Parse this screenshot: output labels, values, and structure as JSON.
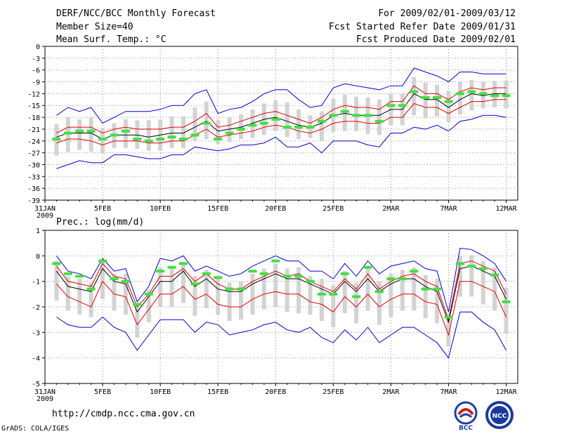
{
  "header": {
    "title": "DERF/NCC/BCC Monthly Forecast",
    "member_size": "Member Size=40",
    "variable": "Mean Surf. Temp.: °C",
    "period": "For 2009/02/01-2009/03/12",
    "refer_date": "Fcst Started Refer Date 2009/01/31",
    "produced_date": "Fcst Produced Date 2009/02/01"
  },
  "footer": {
    "url": "http://cmdp.ncc.cma.gov.cn",
    "credit": "GrADS: COLA/IGES",
    "logo_left": "BCC",
    "logo_right": "NCC"
  },
  "colors": {
    "mean": "#000000",
    "spread": "#e00000",
    "extreme": "#0000cc",
    "box": "#d3d3d3",
    "obs": "#40e040",
    "grid": "#888888"
  },
  "chart_data": [
    {
      "type": "line",
      "title": "Mean Surf. Temp.: °C",
      "ylim": [
        -39,
        0
      ],
      "yticks": [
        0,
        -3,
        -6,
        -9,
        -12,
        -15,
        -18,
        -21,
        -24,
        -27,
        -30,
        -33,
        -36,
        -39
      ],
      "x_ticks": [
        {
          "day": 0,
          "label": "31JAN",
          "sub": "2009"
        },
        {
          "day": 5,
          "label": "5FEB"
        },
        {
          "day": 10,
          "label": "10FEB"
        },
        {
          "day": 15,
          "label": "15FEB"
        },
        {
          "day": 20,
          "label": "20FEB"
        },
        {
          "day": 25,
          "label": "25FEB"
        },
        {
          "day": 30,
          "label": "2MAR"
        },
        {
          "day": 35,
          "label": "7MAR"
        },
        {
          "day": 40,
          "label": "12MAR"
        }
      ],
      "days": [
        1,
        2,
        3,
        4,
        5,
        6,
        7,
        8,
        9,
        10,
        11,
        12,
        13,
        14,
        15,
        16,
        17,
        18,
        19,
        20,
        21,
        22,
        23,
        24,
        25,
        26,
        27,
        28,
        29,
        30,
        31,
        32,
        33,
        34,
        35,
        36,
        37,
        38,
        39,
        40
      ],
      "series": [
        {
          "name": "ensemble_max",
          "role": "extreme",
          "values": [
            -17.5,
            -15.5,
            -16.5,
            -15.5,
            -19.5,
            -18,
            -16.5,
            -16.5,
            -16.5,
            -16,
            -15,
            -15,
            -12,
            -11,
            -17,
            -16,
            -15.5,
            -14,
            -12,
            -11,
            -11,
            -13.5,
            -15.5,
            -15,
            -10.5,
            -9.5,
            -10,
            -10.5,
            -11,
            -10,
            -10,
            -5.5,
            -6.5,
            -7.5,
            -9,
            -6.5,
            -6.5,
            -7,
            -7,
            -7
          ]
        },
        {
          "name": "upper_spread",
          "role": "spread",
          "values": [
            -22,
            -20.5,
            -20.5,
            -20.5,
            -22,
            -21,
            -20.5,
            -21,
            -21,
            -21,
            -20.5,
            -20.5,
            -19,
            -17,
            -20.5,
            -20,
            -19,
            -18,
            -17,
            -16.5,
            -17.5,
            -18.5,
            -19.5,
            -18,
            -16,
            -15,
            -15.5,
            -15.5,
            -16,
            -14,
            -14,
            -10,
            -12,
            -12,
            -13.5,
            -11.5,
            -10.5,
            -11,
            -10.5,
            -10.5
          ]
        },
        {
          "name": "ensemble_mean",
          "role": "mean",
          "values": [
            -23,
            -22,
            -22,
            -22,
            -23.5,
            -22.5,
            -22.5,
            -22.5,
            -23,
            -22.5,
            -22,
            -22,
            -20.5,
            -19,
            -21.5,
            -21,
            -20.5,
            -19.5,
            -18.5,
            -18,
            -19,
            -20,
            -20.5,
            -19.5,
            -17.5,
            -17,
            -17.5,
            -17.5,
            -17.5,
            -16,
            -16,
            -12,
            -13.5,
            -13.5,
            -15.5,
            -13.5,
            -12,
            -12.5,
            -12,
            -12
          ]
        },
        {
          "name": "lower_spread",
          "role": "spread",
          "values": [
            -24.5,
            -23.5,
            -23.5,
            -24,
            -25,
            -24,
            -24,
            -24,
            -24.5,
            -24.5,
            -24,
            -24,
            -22.5,
            -21,
            -23,
            -22.5,
            -22,
            -21.5,
            -20.5,
            -20,
            -20.5,
            -21.5,
            -22,
            -21,
            -19.5,
            -19,
            -19,
            -19.5,
            -19.5,
            -18,
            -18,
            -14.5,
            -15.5,
            -15.5,
            -17,
            -15.5,
            -14,
            -14,
            -13.5,
            -13.5
          ]
        },
        {
          "name": "ensemble_min",
          "role": "extreme",
          "values": [
            -31,
            -30,
            -29,
            -29.5,
            -29.5,
            -27.5,
            -27.5,
            -28,
            -28.5,
            -28.5,
            -27.5,
            -27.5,
            -25.5,
            -26,
            -26.5,
            -26,
            -25,
            -25,
            -24.5,
            -23,
            -25.5,
            -25.5,
            -24.5,
            -27,
            -24,
            -24,
            -24,
            -25,
            -25.5,
            -22,
            -22,
            -20.5,
            -21,
            -20,
            -21.5,
            -19,
            -18.5,
            -17.5,
            -17.5,
            -18
          ]
        },
        {
          "name": "observed",
          "role": "obs",
          "values": [
            -23.5,
            -22,
            -21.5,
            -21.5,
            -23.5,
            -22.5,
            -21.5,
            -23.5,
            -24,
            -23.5,
            -23,
            -23.5,
            -22.5,
            -19.5,
            -23.5,
            -22,
            -21,
            -20,
            -19.5,
            -18.5,
            -20.5,
            -20.5,
            -20.5,
            -19,
            -17.5,
            -16.5,
            -17.5,
            -17.5,
            -19,
            -15,
            -15,
            -11.5,
            -13,
            -13,
            -14,
            -12,
            -11.5,
            -12,
            -12.5,
            -12.5
          ]
        }
      ]
    },
    {
      "type": "line",
      "title": "Prec.: log(mm/d)",
      "ylim": [
        -5,
        1
      ],
      "yticks": [
        1,
        0,
        -1,
        -2,
        -3,
        -4,
        -5
      ],
      "x_ticks": [
        {
          "day": 0,
          "label": "31JAN",
          "sub": "2009"
        },
        {
          "day": 5,
          "label": "5FEB"
        },
        {
          "day": 10,
          "label": "10FEB"
        },
        {
          "day": 15,
          "label": "15FEB"
        },
        {
          "day": 20,
          "label": "20FEB"
        },
        {
          "day": 25,
          "label": "25FEB"
        },
        {
          "day": 30,
          "label": "2MAR"
        },
        {
          "day": 35,
          "label": "7MAR"
        },
        {
          "day": 40,
          "label": "12MAR"
        }
      ],
      "days": [
        1,
        2,
        3,
        4,
        5,
        6,
        7,
        8,
        9,
        10,
        11,
        12,
        13,
        14,
        15,
        16,
        17,
        18,
        19,
        20,
        21,
        22,
        23,
        24,
        25,
        26,
        27,
        28,
        29,
        30,
        31,
        32,
        33,
        34,
        35,
        36,
        37,
        38,
        39,
        40
      ],
      "series": [
        {
          "name": "ensemble_max",
          "role": "extreme",
          "values": [
            0,
            -0.6,
            -0.7,
            -0.9,
            -0.1,
            -0.6,
            -0.5,
            -1.8,
            -1.2,
            -0.1,
            -0.2,
            0,
            -0.6,
            -0.4,
            -0.6,
            -0.8,
            -0.7,
            -0.4,
            -0.2,
            0,
            -0.2,
            -0.2,
            -0.6,
            -0.6,
            -0.9,
            -0.3,
            -0.8,
            -0.2,
            -0.7,
            -0.4,
            -0.3,
            -0.2,
            -0.5,
            -0.6,
            -2.2,
            0.3,
            0.25,
            0,
            -0.3,
            -1
          ]
        },
        {
          "name": "upper_spread",
          "role": "spread",
          "values": [
            -0.4,
            -1,
            -1.1,
            -1.2,
            -0.3,
            -0.8,
            -0.9,
            -2,
            -1.5,
            -0.8,
            -0.8,
            -0.5,
            -1,
            -0.7,
            -1.1,
            -1.3,
            -1.3,
            -1,
            -0.8,
            -0.6,
            -0.8,
            -0.7,
            -1,
            -1.2,
            -1.4,
            -0.9,
            -1.3,
            -0.7,
            -1.3,
            -1,
            -0.8,
            -0.7,
            -1,
            -1.2,
            -2.5,
            -0.3,
            -0.2,
            -0.4,
            -0.6,
            -1.5
          ]
        },
        {
          "name": "ensemble_mean",
          "role": "mean",
          "values": [
            -0.6,
            -1.2,
            -1.3,
            -1.4,
            -0.5,
            -1,
            -1.1,
            -2.2,
            -1.6,
            -1,
            -1,
            -0.6,
            -1.2,
            -0.9,
            -1.3,
            -1.4,
            -1.4,
            -1.1,
            -0.9,
            -0.7,
            -0.9,
            -0.9,
            -1.1,
            -1.3,
            -1.5,
            -1,
            -1.4,
            -0.9,
            -1.4,
            -1.1,
            -0.9,
            -0.9,
            -1.2,
            -1.4,
            -2.6,
            -0.5,
            -0.4,
            -0.6,
            -0.8,
            -1.7
          ]
        },
        {
          "name": "lower_spread",
          "role": "spread",
          "values": [
            -1.1,
            -1.6,
            -1.8,
            -2,
            -1,
            -1.5,
            -1.6,
            -2.7,
            -2.1,
            -1.5,
            -1.5,
            -1.2,
            -1.7,
            -1.5,
            -1.9,
            -2,
            -2,
            -1.7,
            -1.5,
            -1.4,
            -1.5,
            -1.5,
            -1.8,
            -1.9,
            -2.2,
            -1.6,
            -2,
            -1.5,
            -2,
            -1.7,
            -1.5,
            -1.5,
            -1.8,
            -1.9,
            -3.1,
            -1,
            -1,
            -1.2,
            -1.4,
            -2.4
          ]
        },
        {
          "name": "ensemble_min",
          "role": "extreme",
          "values": [
            -2.4,
            -2.7,
            -2.8,
            -2.8,
            -2.4,
            -2.8,
            -3,
            -3.7,
            -3.1,
            -2.5,
            -2.5,
            -2.5,
            -3,
            -2.6,
            -2.7,
            -3.1,
            -3,
            -2.9,
            -2.7,
            -2.6,
            -2.9,
            -3,
            -2.8,
            -3.2,
            -3.4,
            -2.9,
            -3.3,
            -2.8,
            -3.4,
            -3.1,
            -2.8,
            -2.8,
            -3.1,
            -3.4,
            -4,
            -2.2,
            -2.2,
            -2.6,
            -2.9,
            -3.7
          ]
        },
        {
          "name": "observed",
          "role": "obs",
          "values": [
            -0.3,
            -0.7,
            -0.8,
            -1.3,
            -0.2,
            -0.9,
            -1,
            -1.9,
            -1.5,
            -0.6,
            -0.45,
            -0.3,
            -1.1,
            -0.7,
            -0.85,
            -1.3,
            -1.3,
            -0.6,
            -0.7,
            -0.2,
            -0.8,
            -0.8,
            -1,
            -1.5,
            -1.5,
            -0.7,
            -1.6,
            -0.45,
            -1.4,
            -0.9,
            -0.9,
            -0.6,
            -1.3,
            -1.3,
            -2.4,
            -0.3,
            -0.4,
            -0.5,
            -0.75,
            -1.8
          ]
        }
      ]
    }
  ]
}
